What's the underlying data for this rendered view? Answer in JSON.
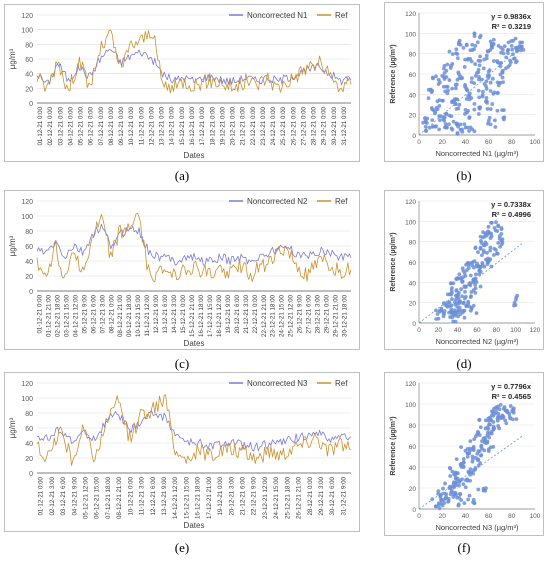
{
  "captions": {
    "a": "(a)",
    "b": "(b)",
    "c": "(c)",
    "d": "(d)",
    "e": "(e)",
    "f": "(f)"
  },
  "colors": {
    "noncorrected": "#7b7bd6",
    "ref": "#c9912f",
    "scatter": "#6d8fd8",
    "trend": "#5b9bd5"
  },
  "chart_data": [
    {
      "id": "a",
      "type": "line",
      "legend": [
        "Noncorrected N1",
        "Ref"
      ],
      "ylabel": "µg/m³",
      "xlabel": "Dates",
      "ylim": [
        0,
        120
      ],
      "yticks": [
        0,
        20,
        40,
        60,
        80,
        100,
        120
      ],
      "categories": [
        "01-12-21 0:00",
        "02-12-21 0:00",
        "03-12-21 0:00",
        "04-12-21 0:00",
        "05-12-21 0:00",
        "06-12-21 0:00",
        "07-12-21 0:00",
        "08-12-21 0:00",
        "09-12-21 0:00",
        "10-12-21 0:00",
        "11-12-21 0:00",
        "12-12-21 0:00",
        "13-12-21 0:00",
        "14-12-21 0:00",
        "15-12-21 0:00",
        "16-12-21 0:00",
        "17-12-21 0:00",
        "18-12-21 0:00",
        "19-12-21 0:00",
        "20-12-21 0:00",
        "21-12-21 0:00",
        "22-12-21 0:00",
        "23-12-21 0:00",
        "24-12-21 0:00",
        "25-12-21 0:00",
        "26-12-21 0:00",
        "27-12-21 0:00",
        "28-12-21 0:00",
        "29-12-21 0:00",
        "30-12-21 0:00",
        "31-12-21 0:00"
      ],
      "series": [
        {
          "name": "Noncorrected N1",
          "values": [
            40,
            25,
            55,
            30,
            50,
            35,
            60,
            75,
            55,
            65,
            70,
            60,
            40,
            30,
            35,
            30,
            35,
            35,
            30,
            30,
            35,
            30,
            35,
            30,
            35,
            40,
            45,
            50,
            40,
            30,
            35
          ]
        },
        {
          "name": "Ref",
          "values": [
            35,
            20,
            60,
            15,
            60,
            20,
            70,
            95,
            45,
            80,
            85,
            100,
            25,
            20,
            30,
            25,
            30,
            30,
            25,
            20,
            30,
            25,
            35,
            20,
            30,
            40,
            50,
            55,
            35,
            20,
            30
          ]
        }
      ]
    },
    {
      "id": "b",
      "type": "scatter",
      "equation": "y = 0.9836x",
      "r2": "R² = 0.3219",
      "xlabel": "Noncorrected N1 (µg/m³)",
      "ylabel": "Reference (µg/m³)",
      "xlim": [
        0,
        100
      ],
      "ylim": [
        0,
        120
      ],
      "xticks": [
        0,
        20,
        40,
        60,
        80,
        100
      ],
      "yticks": [
        0,
        20,
        40,
        60,
        80,
        100,
        120
      ],
      "slope": 0.9836,
      "points": [
        [
          5,
          8
        ],
        [
          8,
          12
        ],
        [
          10,
          40
        ],
        [
          12,
          25
        ],
        [
          15,
          55
        ],
        [
          15,
          10
        ],
        [
          18,
          30
        ],
        [
          20,
          60
        ],
        [
          20,
          20
        ],
        [
          22,
          45
        ],
        [
          25,
          70
        ],
        [
          25,
          15
        ],
        [
          28,
          35
        ],
        [
          30,
          80
        ],
        [
          30,
          50
        ],
        [
          32,
          10
        ],
        [
          35,
          60
        ],
        [
          35,
          30
        ],
        [
          38,
          90
        ],
        [
          40,
          45
        ],
        [
          40,
          20
        ],
        [
          42,
          70
        ],
        [
          45,
          85
        ],
        [
          45,
          35
        ],
        [
          48,
          55
        ],
        [
          50,
          95
        ],
        [
          50,
          25
        ],
        [
          52,
          65
        ],
        [
          55,
          40
        ],
        [
          55,
          75
        ],
        [
          58,
          50
        ],
        [
          60,
          85
        ],
        [
          60,
          30
        ],
        [
          62,
          60
        ],
        [
          65,
          45
        ],
        [
          65,
          90
        ],
        [
          68,
          70
        ],
        [
          70,
          55
        ],
        [
          72,
          85
        ],
        [
          75,
          65
        ],
        [
          78,
          80
        ],
        [
          80,
          90
        ],
        [
          82,
          75
        ],
        [
          85,
          85
        ],
        [
          88,
          88
        ],
        [
          36,
          6
        ],
        [
          44,
          8
        ],
        [
          26,
          5
        ],
        [
          62,
          12
        ],
        [
          70,
          20
        ]
      ]
    },
    {
      "id": "c",
      "type": "line",
      "legend": [
        "Noncorrected N2",
        "Ref"
      ],
      "ylabel": "µg/m³",
      "xlabel": "Dates",
      "ylim": [
        0,
        120
      ],
      "yticks": [
        0,
        20,
        40,
        60,
        80,
        100,
        120
      ],
      "categories": [
        "01-12-21 0:00",
        "01-12-21 21:00",
        "02-12-21 18:00",
        "03-12-21 15:00",
        "04-12-21 12:00",
        "05-12-21 9:00",
        "06-12-21 6:00",
        "07-12-21 3:00",
        "08-12-21 0:00",
        "08-12-21 21:00",
        "09-12-21 18:00",
        "10-12-21 15:00",
        "11-12-21 12:00",
        "12-12-21 9:00",
        "13-12-21 6:00",
        "14-12-21 3:00",
        "15-12-21 0:00",
        "15-12-21 21:00",
        "16-12-21 18:00",
        "17-12-21 15:00",
        "18-12-21 12:00",
        "19-12-21 9:00",
        "20-12-21 6:00",
        "21-12-21 3:00",
        "22-12-21 0:00",
        "22-12-21 21:00",
        "23-12-21 18:00",
        "24-12-21 15:00",
        "25-12-21 12:00",
        "26-12-21 9:00",
        "27-12-21 6:00",
        "28-12-21 3:00",
        "29-12-21 0:00",
        "29-12-21 21:00",
        "30-12-21 18:00"
      ],
      "series": [
        {
          "name": "Noncorrected N2",
          "values": [
            55,
            50,
            65,
            45,
            60,
            50,
            75,
            85,
            60,
            75,
            85,
            80,
            55,
            45,
            45,
            40,
            45,
            45,
            40,
            40,
            45,
            40,
            45,
            40,
            45,
            50,
            55,
            60,
            50,
            45,
            50,
            55,
            50,
            45,
            50
          ]
        },
        {
          "name": "Ref",
          "values": [
            35,
            20,
            60,
            15,
            60,
            20,
            70,
            95,
            45,
            80,
            85,
            100,
            25,
            20,
            30,
            25,
            30,
            30,
            25,
            20,
            30,
            25,
            35,
            20,
            30,
            40,
            50,
            55,
            35,
            20,
            30,
            40,
            30,
            25,
            30
          ]
        }
      ]
    },
    {
      "id": "d",
      "type": "scatter",
      "equation": "y = 0.7338x",
      "r2": "R² = 0.4996",
      "xlabel": "Noncorrected N2 (µg/m³)",
      "ylabel": "Reference (µg/m³)",
      "xlim": [
        0,
        120
      ],
      "ylim": [
        0,
        120
      ],
      "xticks": [
        0,
        20,
        40,
        60,
        80,
        100,
        120
      ],
      "yticks": [
        0,
        20,
        40,
        60,
        80,
        100,
        120
      ],
      "slope": 0.7338,
      "points": [
        [
          20,
          8
        ],
        [
          25,
          10
        ],
        [
          28,
          20
        ],
        [
          30,
          15
        ],
        [
          32,
          25
        ],
        [
          35,
          10
        ],
        [
          35,
          35
        ],
        [
          38,
          20
        ],
        [
          40,
          30
        ],
        [
          40,
          45
        ],
        [
          42,
          15
        ],
        [
          45,
          40
        ],
        [
          45,
          25
        ],
        [
          48,
          50
        ],
        [
          50,
          35
        ],
        [
          50,
          20
        ],
        [
          52,
          55
        ],
        [
          55,
          45
        ],
        [
          55,
          30
        ],
        [
          58,
          60
        ],
        [
          60,
          50
        ],
        [
          60,
          40
        ],
        [
          62,
          70
        ],
        [
          65,
          55
        ],
        [
          65,
          80
        ],
        [
          68,
          65
        ],
        [
          70,
          90
        ],
        [
          70,
          75
        ],
        [
          72,
          60
        ],
        [
          75,
          85
        ],
        [
          78,
          95
        ],
        [
          80,
          70
        ],
        [
          82,
          90
        ],
        [
          85,
          80
        ],
        [
          100,
          22
        ],
        [
          44,
          8
        ],
        [
          56,
          12
        ],
        [
          38,
          6
        ]
      ]
    },
    {
      "id": "e",
      "type": "line",
      "legend": [
        "Noncorrected N3",
        "Ref"
      ],
      "ylabel": "µg/m³",
      "xlabel": "Dates",
      "ylim": [
        0,
        120
      ],
      "yticks": [
        0,
        20,
        40,
        60,
        80,
        100,
        120
      ],
      "categories": [
        "01-12-21 0:00",
        "02-12-21 3:00",
        "03-12-21 6:00",
        "04-12-21 9:00",
        "05-12-21 12:00",
        "06-12-21 15:00",
        "07-12-21 18:00",
        "08-12-21 21:00",
        "10-12-21 0:00",
        "11-12-21 3:00",
        "12-12-21 6:00",
        "13-12-21 9:00",
        "14-12-21 12:00",
        "15-12-21 15:00",
        "16-12-21 18:00",
        "17-12-21 21:00",
        "19-12-21 0:00",
        "20-12-21 3:00",
        "21-12-21 6:00",
        "22-12-21 9:00",
        "23-12-21 12:00",
        "24-12-21 15:00",
        "25-12-21 18:00",
        "26-12-21 21:00",
        "28-12-21 0:00",
        "29-12-21 3:00",
        "30-12-21 6:00",
        "31-12-21 9:00"
      ],
      "series": [
        {
          "name": "Noncorrected N3",
          "values": [
            50,
            45,
            60,
            40,
            55,
            45,
            70,
            80,
            55,
            70,
            80,
            75,
            50,
            40,
            40,
            35,
            40,
            40,
            35,
            35,
            40,
            40,
            45,
            50,
            55,
            45,
            50,
            45
          ]
        },
        {
          "name": "Ref",
          "values": [
            35,
            20,
            60,
            15,
            60,
            20,
            70,
            95,
            45,
            80,
            85,
            100,
            25,
            20,
            30,
            25,
            30,
            30,
            25,
            20,
            30,
            25,
            35,
            40,
            50,
            30,
            40,
            30
          ]
        }
      ]
    },
    {
      "id": "f",
      "type": "scatter",
      "equation": "y = 0.7796x",
      "r2": "R² = 0.4565",
      "xlabel": "Noncorrected N3 (µg/m³)",
      "ylabel": "Reference (µg/m³)",
      "xlim": [
        0,
        100
      ],
      "ylim": [
        0,
        120
      ],
      "xticks": [
        0,
        20,
        40,
        60,
        80,
        100
      ],
      "yticks": [
        0,
        20,
        40,
        60,
        80,
        100,
        120
      ],
      "slope": 0.7796,
      "points": [
        [
          15,
          5
        ],
        [
          18,
          10
        ],
        [
          20,
          15
        ],
        [
          22,
          8
        ],
        [
          25,
          20
        ],
        [
          28,
          12
        ],
        [
          30,
          25
        ],
        [
          30,
          35
        ],
        [
          32,
          18
        ],
        [
          35,
          30
        ],
        [
          35,
          45
        ],
        [
          38,
          25
        ],
        [
          40,
          40
        ],
        [
          40,
          55
        ],
        [
          42,
          30
        ],
        [
          45,
          50
        ],
        [
          45,
          35
        ],
        [
          48,
          60
        ],
        [
          50,
          45
        ],
        [
          50,
          70
        ],
        [
          52,
          55
        ],
        [
          55,
          65
        ],
        [
          55,
          80
        ],
        [
          58,
          70
        ],
        [
          60,
          85
        ],
        [
          60,
          60
        ],
        [
          62,
          75
        ],
        [
          65,
          90
        ],
        [
          65,
          95
        ],
        [
          68,
          80
        ],
        [
          70,
          100
        ],
        [
          72,
          85
        ],
        [
          75,
          90
        ],
        [
          78,
          95
        ],
        [
          80,
          88
        ],
        [
          36,
          6
        ],
        [
          44,
          10
        ],
        [
          54,
          15
        ]
      ]
    }
  ]
}
